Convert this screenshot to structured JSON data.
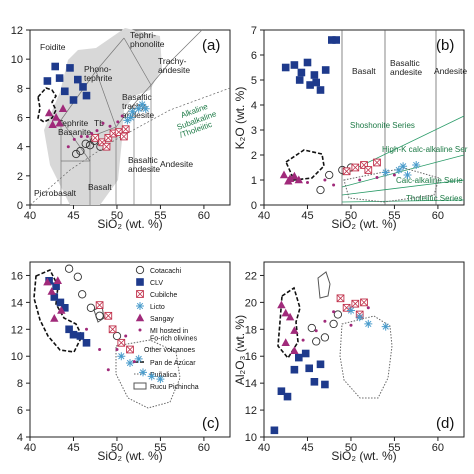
{
  "chart_data": [
    {
      "type": "scatter",
      "panel": "(a)",
      "xlabel": "SiO₂ (wt. %)",
      "ylabel": "",
      "xlim": [
        40,
        63
      ],
      "ylim": [
        0,
        12
      ],
      "xticks": [
        40,
        45,
        50,
        55,
        60
      ],
      "yticks": [
        0,
        2,
        4,
        6,
        8,
        10,
        12
      ],
      "field_labels": [
        "Foidite",
        "Tephri-\nphonolite",
        "Phono-\ntephrite",
        "Trachy-\nandesite",
        "Tephrite\nBasanite",
        "Tb",
        "Basaltic\ntrachy-\nandesite",
        "Picrobasalt",
        "Basalt",
        "Basaltic\nandesite",
        "Andesite"
      ],
      "series_labels": [
        "Alkaline",
        "Subalkaline\n/Tholeiitic"
      ],
      "series": [
        {
          "name": "CLV",
          "values": [
            [
              42.0,
              8.5
            ],
            [
              42.9,
              9.5
            ],
            [
              43.4,
              8.7
            ],
            [
              44.6,
              9.4
            ],
            [
              45.5,
              8.6
            ],
            [
              46.1,
              8.1
            ],
            [
              44.0,
              7.8
            ],
            [
              46.5,
              7.5
            ],
            [
              45.0,
              7.2
            ]
          ]
        },
        {
          "name": "Sangay",
          "values": [
            [
              42.2,
              6.3
            ],
            [
              43.0,
              6.0
            ],
            [
              43.4,
              5.6
            ],
            [
              42.6,
              5.5
            ],
            [
              43.8,
              6.6
            ]
          ]
        },
        {
          "name": "Cotacachi",
          "values": [
            [
              45.8,
              3.7
            ],
            [
              46.4,
              4.2
            ],
            [
              46.9,
              4.1
            ],
            [
              45.3,
              3.5
            ],
            [
              47.4,
              4.4
            ],
            [
              48.1,
              4.0
            ]
          ]
        },
        {
          "name": "Cubilche",
          "values": [
            [
              48.3,
              4.3
            ],
            [
              49.0,
              4.6
            ],
            [
              49.6,
              4.9
            ],
            [
              50.2,
              5.0
            ],
            [
              48.8,
              4.0
            ],
            [
              50.8,
              4.7
            ],
            [
              51.0,
              5.2
            ],
            [
              47.5,
              4.6
            ]
          ]
        },
        {
          "name": "Licto",
          "values": [
            [
              51.2,
              5.8
            ],
            [
              51.8,
              6.4
            ],
            [
              52.5,
              6.6
            ],
            [
              52.9,
              6.9
            ],
            [
              53.3,
              6.6
            ],
            [
              51.6,
              6.0
            ]
          ]
        },
        {
          "name": "MI hosted in Fo-rich olivines",
          "values": [
            [
              44.4,
              4.0
            ],
            [
              45.1,
              4.5
            ],
            [
              46.6,
              4.7
            ],
            [
              47.7,
              5.1
            ],
            [
              48.4,
              5.6
            ],
            [
              49.2,
              5.4
            ],
            [
              50.1,
              5.7
            ],
            [
              50.6,
              6.1
            ],
            [
              47.1,
              4.9
            ],
            [
              45.9,
              4.7
            ]
          ]
        }
      ]
    },
    {
      "type": "scatter",
      "panel": "(b)",
      "xlabel": "SiO₂ (wt. %)",
      "ylabel": "K₂O (wt. %)",
      "xlim": [
        40,
        63
      ],
      "ylim": [
        0,
        7
      ],
      "xticks": [
        40,
        45,
        50,
        55,
        60
      ],
      "yticks": [
        0,
        1,
        2,
        3,
        4,
        5,
        6,
        7
      ],
      "field_labels": [
        "Basalt",
        "Basaltic\nandesite",
        "Andesite"
      ],
      "series_labels": [
        "Shoshonite Series",
        "High-K calc-alkaline Ser",
        "Calc-alkaline Serie",
        "Tholeiitic Series"
      ],
      "series": [
        {
          "name": "CLV",
          "values": [
            [
              42.5,
              5.5
            ],
            [
              43.5,
              5.6
            ],
            [
              44.3,
              5.3
            ],
            [
              44.1,
              5.0
            ],
            [
              45.0,
              5.7
            ],
            [
              45.8,
              5.2
            ],
            [
              46.0,
              4.9
            ],
            [
              46.5,
              4.6
            ],
            [
              47.1,
              5.4
            ],
            [
              45.3,
              4.8
            ],
            [
              47.8,
              6.6
            ],
            [
              48.3,
              6.6
            ]
          ]
        },
        {
          "name": "Sangay",
          "values": [
            [
              42.3,
              1.2
            ],
            [
              43.0,
              1.05
            ],
            [
              43.5,
              1.15
            ],
            [
              44.0,
              1.0
            ],
            [
              42.8,
              0.95
            ]
          ]
        },
        {
          "name": "Cotacachi",
          "values": [
            [
              46.5,
              0.6
            ],
            [
              47.5,
              1.2
            ],
            [
              49.0,
              1.4
            ],
            [
              50.0,
              1.5
            ]
          ]
        },
        {
          "name": "Cubilche",
          "values": [
            [
              49.5,
              1.35
            ],
            [
              50.5,
              1.5
            ],
            [
              51.5,
              1.6
            ],
            [
              52.0,
              1.4
            ],
            [
              53.0,
              1.7
            ]
          ]
        },
        {
          "name": "Licto",
          "values": [
            [
              54.0,
              1.3
            ],
            [
              55.5,
              1.4
            ],
            [
              56.5,
              1.2
            ],
            [
              57.5,
              1.6
            ],
            [
              56.0,
              1.55
            ]
          ]
        },
        {
          "name": "MI hosted in Fo-rich olivines",
          "values": [
            [
              45.0,
              0.9
            ],
            [
              47.0,
              1.0
            ],
            [
              48.0,
              0.8
            ],
            [
              51.0,
              1.0
            ],
            [
              53.0,
              1.1
            ],
            [
              55.0,
              1.2
            ]
          ]
        }
      ]
    },
    {
      "type": "scatter",
      "panel": "(c)",
      "xlabel": "SiO₂ (wt. %)",
      "ylabel": "",
      "xlim": [
        40,
        63
      ],
      "ylim": [
        4,
        17
      ],
      "xticks": [
        40,
        45,
        50,
        55,
        60
      ],
      "yticks": [
        4,
        6,
        8,
        10,
        12,
        14,
        16
      ],
      "series": [
        {
          "name": "CLV",
          "values": [
            [
              42.2,
              15.6
            ],
            [
              43.0,
              15.2
            ],
            [
              43.5,
              14.0
            ],
            [
              44.0,
              13.6
            ],
            [
              44.5,
              12.0
            ],
            [
              45.0,
              11.6
            ],
            [
              45.8,
              11.5
            ],
            [
              46.5,
              11.0
            ],
            [
              42.8,
              14.4
            ]
          ]
        },
        {
          "name": "Sangay",
          "values": [
            [
              42.0,
              15.5
            ],
            [
              42.5,
              14.8
            ],
            [
              43.2,
              15.6
            ],
            [
              43.6,
              13.4
            ],
            [
              42.8,
              12.8
            ]
          ]
        },
        {
          "name": "Cotacachi",
          "values": [
            [
              44.5,
              16.5
            ],
            [
              45.5,
              15.9
            ],
            [
              46.0,
              14.6
            ],
            [
              47.0,
              13.6
            ],
            [
              48.0,
              13.0
            ],
            [
              50.0,
              11.5
            ]
          ]
        },
        {
          "name": "Cubilche",
          "values": [
            [
              48.0,
              13.8
            ],
            [
              49.0,
              13.0
            ],
            [
              49.5,
              12.0
            ],
            [
              50.5,
              11.0
            ],
            [
              51.5,
              10.5
            ]
          ]
        },
        {
          "name": "Licto",
          "values": [
            [
              50.5,
              10.0
            ],
            [
              51.5,
              9.5
            ],
            [
              52.5,
              9.8
            ],
            [
              53.0,
              8.8
            ],
            [
              54.0,
              8.5
            ],
            [
              55.0,
              8.3
            ]
          ]
        },
        {
          "name": "MI hosted in Fo-rich olivines",
          "values": [
            [
              46.5,
              12.0
            ],
            [
              48.0,
              10.5
            ],
            [
              49.0,
              9.0
            ],
            [
              50.0,
              10.5
            ],
            [
              51.0,
              11.5
            ],
            [
              52.0,
              9.6
            ]
          ]
        }
      ],
      "legend": {
        "entries": [
          "Cotacachi",
          "CLV",
          "Cubilche",
          "Licto",
          "Sangay",
          "MI hosted in\nFo-rich olivines"
        ],
        "group_title": "Other volcanoes",
        "other_volcanoes": [
          "Pan de Azúcar",
          "Puñalica",
          "Rucu Pichincha"
        ]
      }
    },
    {
      "type": "scatter",
      "panel": "(d)",
      "xlabel": "SiO₂ (wt. %)",
      "ylabel": "Al₂O₃ (wt. %)",
      "xlim": [
        40,
        63
      ],
      "ylim": [
        10,
        23
      ],
      "xticks": [
        40,
        45,
        50,
        55,
        60
      ],
      "yticks": [
        10,
        12,
        14,
        16,
        18,
        20,
        22
      ],
      "series": [
        {
          "name": "CLV",
          "values": [
            [
              41.2,
              10.5
            ],
            [
              42.0,
              13.4
            ],
            [
              42.7,
              13.0
            ],
            [
              43.5,
              15.0
            ],
            [
              44.0,
              15.9
            ],
            [
              44.8,
              16.2
            ],
            [
              45.2,
              15.1
            ],
            [
              45.8,
              14.1
            ],
            [
              46.5,
              15.4
            ],
            [
              47.0,
              13.9
            ]
          ]
        },
        {
          "name": "Sangay",
          "values": [
            [
              42.0,
              19.8
            ],
            [
              42.5,
              19.2
            ],
            [
              43.0,
              18.9
            ],
            [
              43.5,
              17.9
            ],
            [
              42.5,
              17.0
            ],
            [
              43.5,
              16.4
            ]
          ]
        },
        {
          "name": "Cotacachi",
          "values": [
            [
              45.5,
              18.1
            ],
            [
              46.0,
              17.1
            ],
            [
              47.0,
              17.4
            ],
            [
              48.0,
              18.4
            ],
            [
              48.5,
              19.1
            ]
          ]
        },
        {
          "name": "Cubilche",
          "values": [
            [
              48.8,
              20.3
            ],
            [
              49.5,
              19.6
            ],
            [
              50.5,
              19.9
            ],
            [
              51.0,
              19.1
            ],
            [
              51.5,
              20.0
            ]
          ]
        },
        {
          "name": "Licto",
          "values": [
            [
              50.0,
              19.4
            ],
            [
              51.0,
              18.9
            ],
            [
              52.0,
              18.4
            ],
            [
              54.0,
              18.2
            ]
          ]
        },
        {
          "name": "MI hosted in Fo-rich olivines",
          "values": [
            [
              44.5,
              17.2
            ],
            [
              46.0,
              17.9
            ],
            [
              47.0,
              18.6
            ],
            [
              48.0,
              19.3
            ],
            [
              50.0,
              18.3
            ],
            [
              52.0,
              19.6
            ]
          ]
        }
      ]
    }
  ],
  "colors": {
    "clv": "#1e3a8c",
    "sangay": "#a02a7a",
    "cubilche": "#c0304a",
    "licto": "#4a9ccc",
    "mi": "#a02a7a",
    "series_text": "#1d7a46",
    "field_gray": "#d8d8d8"
  }
}
